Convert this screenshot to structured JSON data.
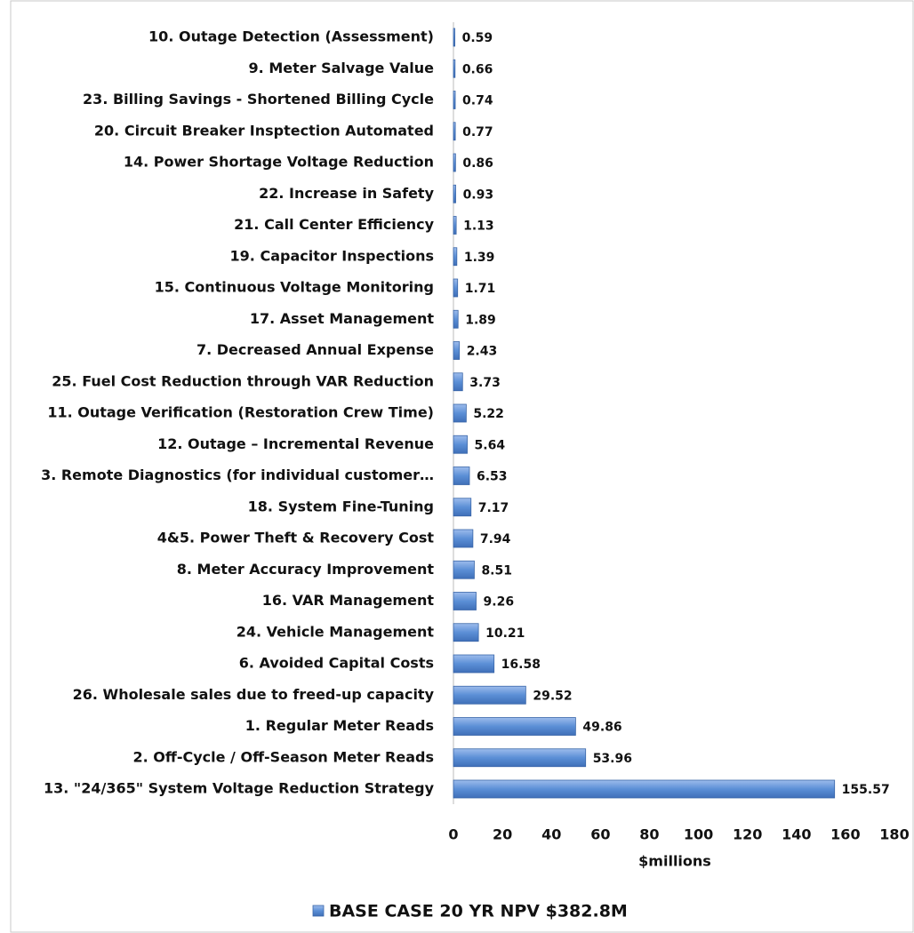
{
  "chart_data": {
    "type": "barh",
    "categories": [
      "10. Outage Detection (Assessment)",
      "9. Meter Salvage Value",
      "23. Billing Savings - Shortened Billing Cycle",
      "20. Circuit Breaker Insptection Automated",
      "14. Power Shortage Voltage Reduction",
      "22. Increase in Safety",
      "21. Call Center Efficiency",
      "19. Capacitor Inspections",
      "15. Continuous Voltage Monitoring",
      "17. Asset Management",
      "7. Decreased Annual Expense",
      "25. Fuel Cost Reduction through VAR Reduction",
      "11. Outage Verification (Restoration Crew Time)",
      "12. Outage – Incremental Revenue",
      "3. Remote Diagnostics (for individual customer…",
      "18. System Fine-Tuning",
      "4&5. Power Theft & Recovery Cost",
      "8. Meter Accuracy Improvement",
      "16. VAR Management",
      "24. Vehicle Management",
      "6. Avoided Capital Costs",
      "26. Wholesale sales due to freed-up capacity",
      "1. Regular Meter Reads",
      "2. Off-Cycle / Off-Season Meter Reads",
      "13. \"24/365\" System Voltage Reduction Strategy"
    ],
    "series": [
      {
        "name": "BASE CASE 20 YR NPV $382.8M",
        "color": "#5b8fd6",
        "values": [
          0.59,
          0.66,
          0.74,
          0.77,
          0.86,
          0.93,
          1.13,
          1.39,
          1.71,
          1.89,
          2.43,
          3.73,
          5.22,
          5.64,
          6.53,
          7.17,
          7.94,
          8.51,
          9.26,
          10.21,
          16.58,
          29.52,
          49.86,
          53.96,
          155.57
        ]
      }
    ],
    "xlabel": "$millions",
    "xlim": [
      0,
      180
    ],
    "xticks": [
      0,
      20,
      40,
      60,
      80,
      100,
      120,
      140,
      160,
      180
    ],
    "grid": false,
    "legend": "bottom"
  }
}
